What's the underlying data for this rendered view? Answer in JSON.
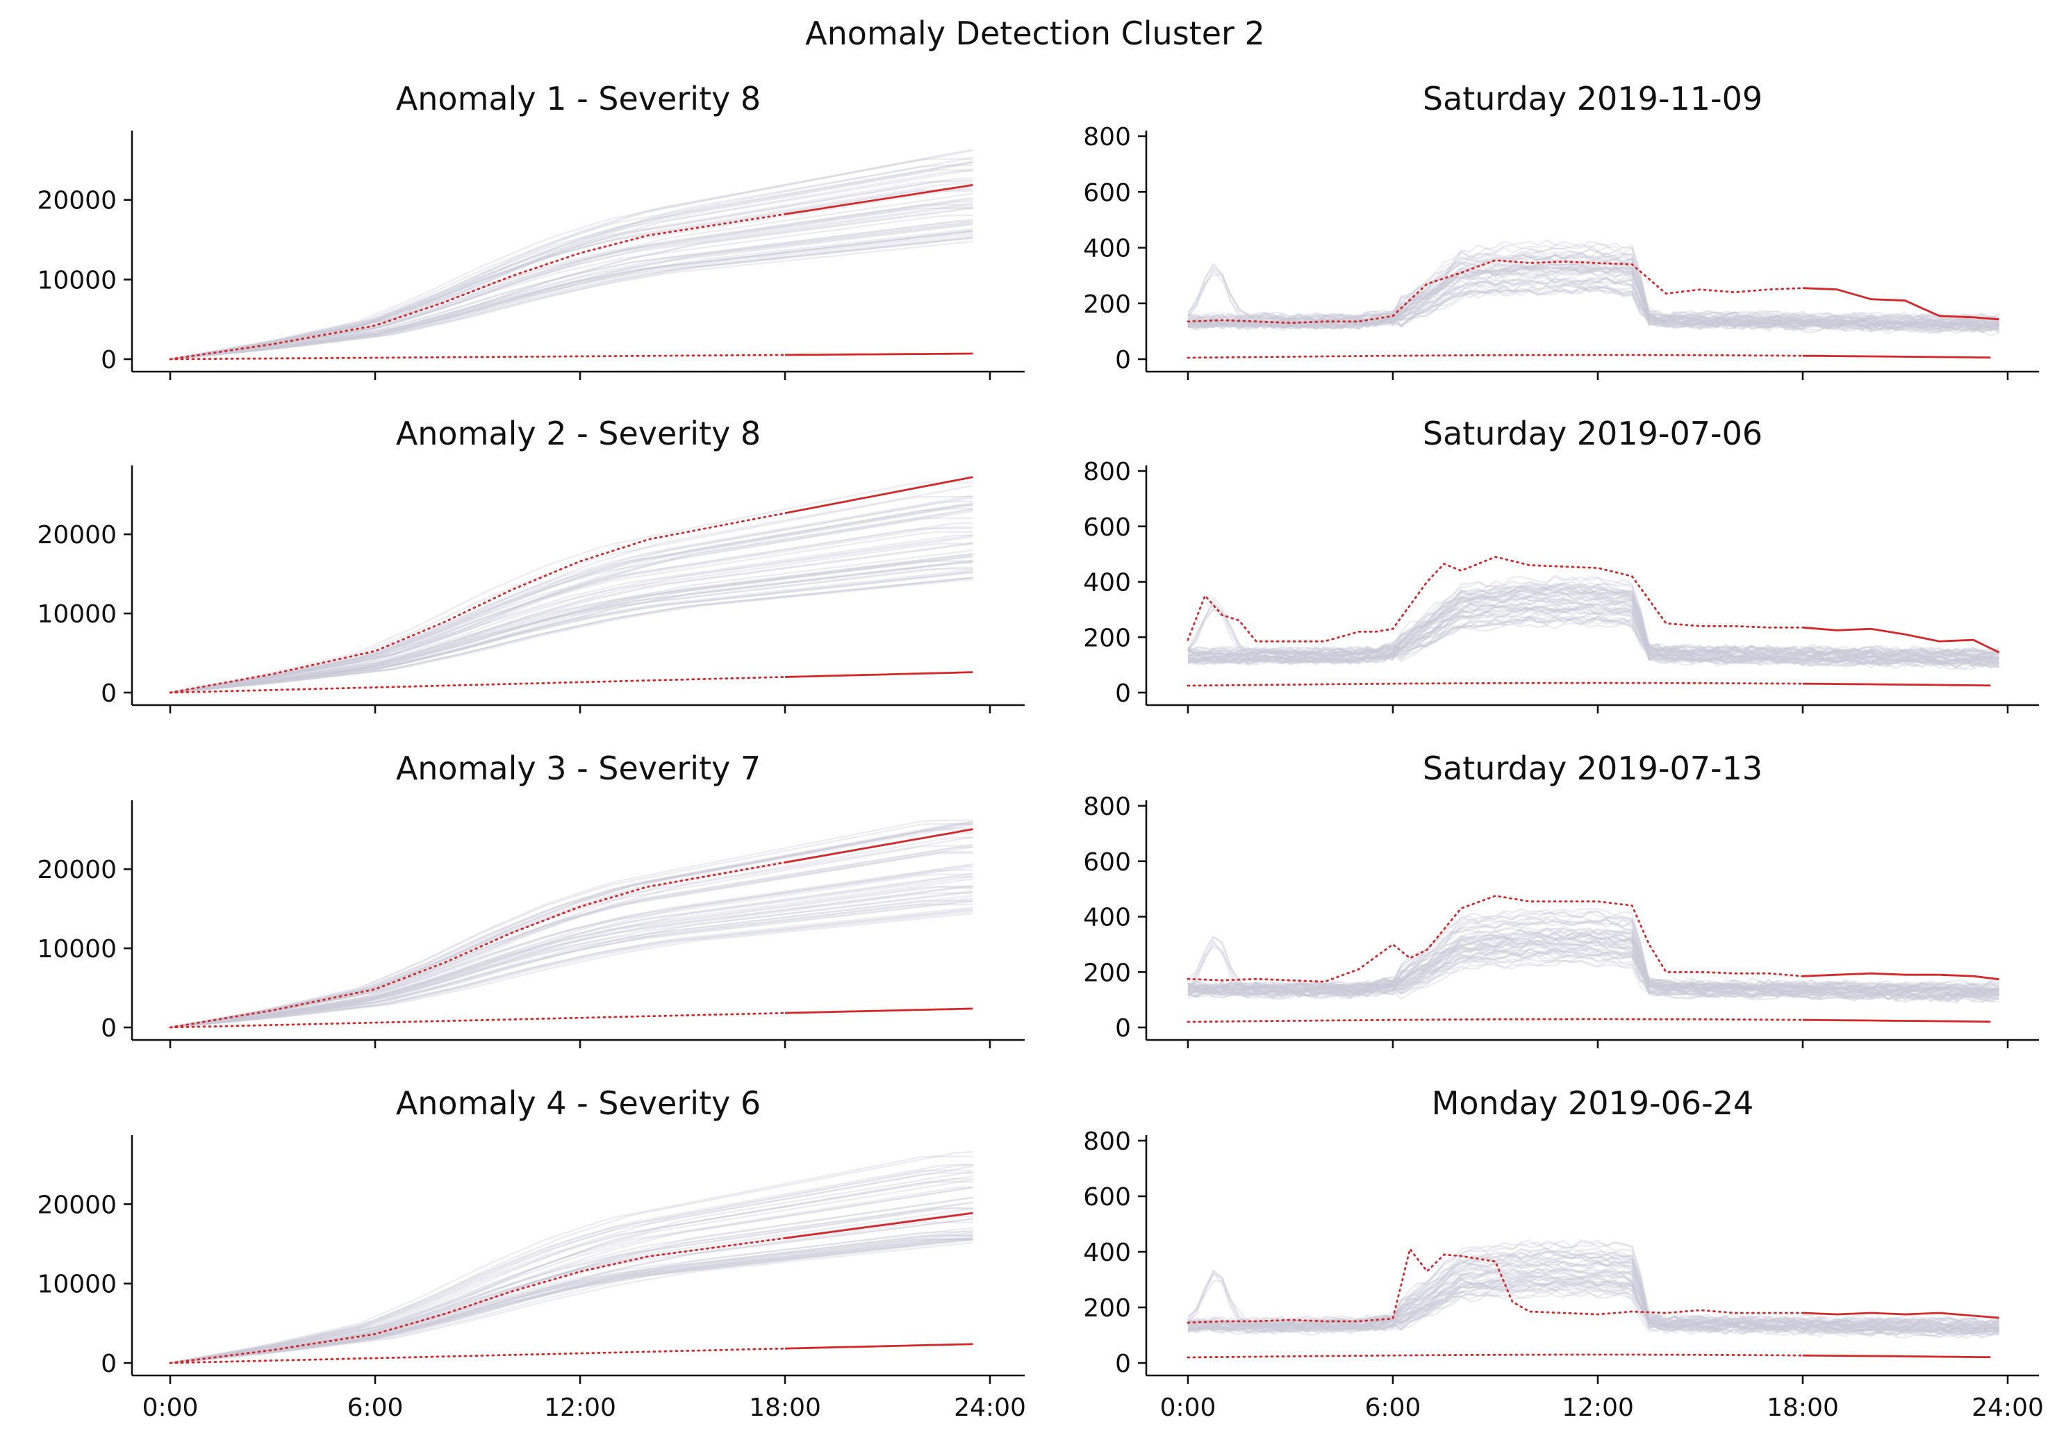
{
  "suptitle": "Anomaly Detection Cluster 2",
  "colors": {
    "anomaly": "#d62728",
    "cluster": "#c9c9d6",
    "axis": "#111111"
  },
  "chart_data": [
    {
      "type": "line",
      "title": "Anomaly 1 - Severity 8",
      "x_ticks": [
        "0:00",
        "6:00",
        "12:00",
        "18:00",
        "24:00"
      ],
      "show_x_tick_labels": false,
      "xlim": [
        0,
        24
      ],
      "ylim": [
        0,
        28000
      ],
      "y_ticks": [
        0,
        10000,
        20000
      ],
      "series_kind": "cumulative",
      "highlight": {
        "upper_end": 22000,
        "lower_end": 700
      },
      "forecast_start": "18:00"
    },
    {
      "type": "line",
      "title": "Saturday 2019-11-09",
      "x_ticks": [
        "0:00",
        "6:00",
        "12:00",
        "18:00",
        "24:00"
      ],
      "show_x_tick_labels": false,
      "xlim": [
        0,
        24
      ],
      "ylim": [
        0,
        800
      ],
      "y_ticks": [
        0,
        200,
        400,
        600,
        800
      ],
      "series_kind": "daily",
      "highlight": {
        "x": [
          0,
          1,
          2,
          3,
          4,
          5,
          6,
          7,
          8,
          9,
          10,
          11,
          12,
          13,
          14,
          15,
          16,
          17,
          18,
          19,
          20,
          21,
          22,
          23,
          24
        ],
        "y": [
          135,
          140,
          135,
          130,
          135,
          135,
          155,
          270,
          310,
          355,
          345,
          350,
          345,
          340,
          235,
          250,
          240,
          250,
          255,
          250,
          215,
          210,
          155,
          150,
          140
        ],
        "lower": 5
      },
      "forecast_start": "18:00"
    },
    {
      "type": "line",
      "title": "Anomaly 2 - Severity 8",
      "x_ticks": [
        "0:00",
        "6:00",
        "12:00",
        "18:00",
        "24:00"
      ],
      "show_x_tick_labels": false,
      "xlim": [
        0,
        24
      ],
      "ylim": [
        0,
        28000
      ],
      "y_ticks": [
        0,
        10000,
        20000
      ],
      "series_kind": "cumulative",
      "highlight": {
        "upper_end": 27400,
        "lower_end": 2600
      },
      "forecast_start": "18:00"
    },
    {
      "type": "line",
      "title": "Saturday 2019-07-06",
      "x_ticks": [
        "0:00",
        "6:00",
        "12:00",
        "18:00",
        "24:00"
      ],
      "show_x_tick_labels": false,
      "xlim": [
        0,
        24
      ],
      "ylim": [
        0,
        800
      ],
      "y_ticks": [
        0,
        200,
        400,
        600,
        800
      ],
      "series_kind": "daily",
      "highlight": {
        "x": [
          0,
          0.5,
          1,
          1.5,
          2,
          3,
          4,
          5,
          5.5,
          6,
          7,
          7.5,
          8,
          9,
          10,
          11,
          12,
          13,
          14,
          15,
          16,
          17,
          18,
          19,
          20,
          21,
          22,
          23,
          24
        ],
        "y": [
          190,
          350,
          280,
          260,
          185,
          185,
          185,
          220,
          220,
          230,
          400,
          465,
          440,
          490,
          460,
          455,
          450,
          420,
          250,
          240,
          240,
          235,
          235,
          225,
          230,
          210,
          185,
          190,
          130
        ],
        "lower": 25
      },
      "forecast_start": "18:00"
    },
    {
      "type": "line",
      "title": "Anomaly 3 - Severity 7",
      "x_ticks": [
        "0:00",
        "6:00",
        "12:00",
        "18:00",
        "24:00"
      ],
      "show_x_tick_labels": false,
      "xlim": [
        0,
        24
      ],
      "ylim": [
        0,
        28000
      ],
      "y_ticks": [
        0,
        10000,
        20000
      ],
      "series_kind": "cumulative",
      "highlight": {
        "upper_end": 25200,
        "lower_end": 2400
      },
      "forecast_start": "18:00"
    },
    {
      "type": "line",
      "title": "Saturday 2019-07-13",
      "x_ticks": [
        "0:00",
        "6:00",
        "12:00",
        "18:00",
        "24:00"
      ],
      "show_x_tick_labels": false,
      "xlim": [
        0,
        24
      ],
      "ylim": [
        0,
        800
      ],
      "y_ticks": [
        0,
        200,
        400,
        600,
        800
      ],
      "series_kind": "daily",
      "highlight": {
        "x": [
          0,
          1,
          2,
          3,
          4,
          5,
          6,
          6.5,
          7,
          8,
          9,
          10,
          11,
          12,
          13,
          13.5,
          14,
          15,
          16,
          17,
          18,
          19,
          20,
          21,
          22,
          23,
          24
        ],
        "y": [
          175,
          170,
          175,
          170,
          165,
          210,
          300,
          250,
          280,
          430,
          475,
          455,
          455,
          455,
          440,
          300,
          200,
          200,
          195,
          195,
          185,
          190,
          195,
          190,
          190,
          185,
          170
        ],
        "lower": 20
      },
      "forecast_start": "18:00"
    },
    {
      "type": "line",
      "title": "Anomaly 4 - Severity 6",
      "x_ticks": [
        "0:00",
        "6:00",
        "12:00",
        "18:00",
        "24:00"
      ],
      "show_x_tick_labels": true,
      "xlim": [
        0,
        24
      ],
      "ylim": [
        0,
        28000
      ],
      "y_ticks": [
        0,
        10000,
        20000
      ],
      "series_kind": "cumulative",
      "highlight": {
        "upper_end": 19000,
        "lower_end": 2400
      },
      "forecast_start": "18:00"
    },
    {
      "type": "line",
      "title": "Monday 2019-06-24",
      "x_ticks": [
        "0:00",
        "6:00",
        "12:00",
        "18:00",
        "24:00"
      ],
      "show_x_tick_labels": true,
      "xlim": [
        0,
        24
      ],
      "ylim": [
        0,
        800
      ],
      "y_ticks": [
        0,
        200,
        400,
        600,
        800
      ],
      "series_kind": "daily",
      "highlight": {
        "x": [
          0,
          1,
          2,
          3,
          4,
          5,
          6,
          6.5,
          7,
          7.5,
          8,
          9,
          9.5,
          10,
          11,
          12,
          13,
          14,
          15,
          16,
          17,
          18,
          19,
          20,
          21,
          22,
          23,
          24
        ],
        "y": [
          145,
          150,
          150,
          155,
          150,
          150,
          160,
          410,
          330,
          390,
          385,
          365,
          220,
          185,
          180,
          175,
          185,
          180,
          190,
          180,
          180,
          180,
          175,
          180,
          175,
          180,
          170,
          160
        ],
        "lower": 20
      },
      "forecast_start": "18:00"
    }
  ]
}
